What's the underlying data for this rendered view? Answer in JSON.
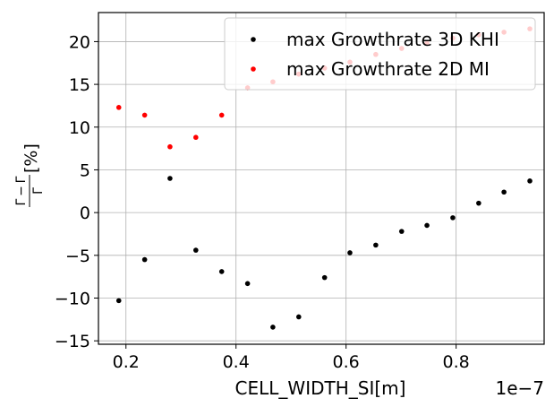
{
  "chart_data": {
    "type": "scatter",
    "xlabel": "CELL_WIDTH_SI[m]",
    "x_offset_label": "1e−7",
    "ylabel_parts": {
      "numerator": "Γ̄ − Γ",
      "denominator": "Γ",
      "suffix": "[%]"
    },
    "xlim": [
      1.5e-08,
      9.6e-08
    ],
    "ylim": [
      -15.4,
      23.4
    ],
    "xticks": [
      2e-08,
      4e-08,
      6e-08,
      8e-08
    ],
    "xtick_labels": [
      "0.2",
      "0.4",
      "0.6",
      "0.8"
    ],
    "yticks": [
      -15,
      -10,
      -5,
      0,
      5,
      10,
      15,
      20
    ],
    "ytick_labels": [
      "−15",
      "−10",
      "−5",
      "0",
      "5",
      "10",
      "15",
      "20"
    ],
    "grid": true,
    "legend_position": "upper right",
    "series": [
      {
        "name": "max Growthrate 3D KHI",
        "color": "#000000",
        "x": [
          1.87e-08,
          2.34e-08,
          2.8e-08,
          3.27e-08,
          3.74e-08,
          4.21e-08,
          4.67e-08,
          5.14e-08,
          5.61e-08,
          6.07e-08,
          6.54e-08,
          7.01e-08,
          7.47e-08,
          7.94e-08,
          8.41e-08,
          8.87e-08,
          9.34e-08
        ],
        "y": [
          -10.3,
          -5.5,
          4.0,
          -4.4,
          -6.9,
          -8.3,
          -13.4,
          -12.2,
          -7.6,
          -4.7,
          -3.8,
          -2.2,
          -1.5,
          -0.6,
          1.1,
          2.4,
          3.7
        ]
      },
      {
        "name": "max Growthrate 2D MI",
        "color": "#ff0000",
        "x": [
          1.87e-08,
          2.34e-08,
          2.8e-08,
          3.27e-08,
          3.74e-08,
          4.21e-08,
          4.67e-08,
          5.14e-08,
          5.61e-08,
          6.07e-08,
          6.54e-08,
          7.01e-08,
          7.47e-08,
          7.94e-08,
          8.41e-08,
          8.87e-08,
          9.34e-08
        ],
        "y": [
          12.3,
          11.4,
          7.7,
          8.8,
          11.4,
          14.6,
          15.3,
          16.2,
          16.9,
          17.6,
          18.5,
          19.2,
          19.8,
          20.4,
          20.8,
          21.1,
          21.5
        ]
      }
    ]
  }
}
